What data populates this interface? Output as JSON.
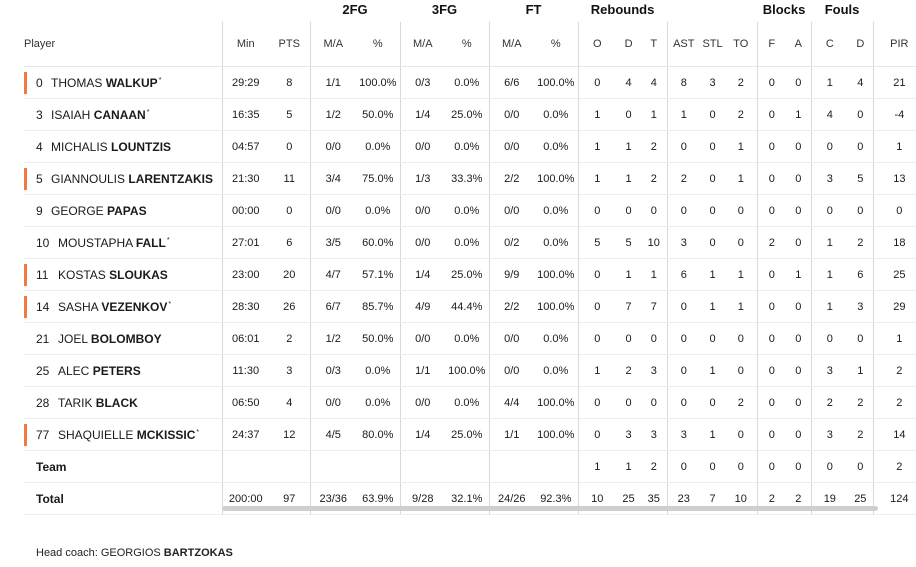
{
  "groups": {
    "fg2": "2FG",
    "fg3": "3FG",
    "ft": "FT",
    "reb": "Rebounds",
    "blk": "Blocks",
    "fouls": "Fouls"
  },
  "headers": {
    "player": "Player",
    "min": "Min",
    "pts": "PTS",
    "fg2_ma": "M/A",
    "fg2_pct": "%",
    "fg3_ma": "M/A",
    "fg3_pct": "%",
    "ft_ma": "M/A",
    "ft_pct": "%",
    "reb_o": "O",
    "reb_d": "D",
    "reb_t": "T",
    "ast": "AST",
    "stl": "STL",
    "to": "TO",
    "blk_f": "F",
    "blk_a": "A",
    "foul_c": "C",
    "foul_d": "D",
    "pir": "PIR"
  },
  "players": [
    {
      "num": "0",
      "first": "THOMAS",
      "last": "WALKUP",
      "star": "*",
      "starter": true,
      "min": "29:29",
      "pts": "8",
      "fg2": "1/1",
      "fg2p": "100.0%",
      "fg3": "0/3",
      "fg3p": "0.0%",
      "ft": "6/6",
      "ftp": "100.0%",
      "o": "0",
      "d": "4",
      "t": "4",
      "ast": "8",
      "stl": "3",
      "to": "2",
      "bf": "0",
      "ba": "0",
      "fc": "1",
      "fd": "4",
      "pir": "21"
    },
    {
      "num": "3",
      "first": "ISAIAH",
      "last": "CANAAN",
      "star": "*",
      "starter": false,
      "min": "16:35",
      "pts": "5",
      "fg2": "1/2",
      "fg2p": "50.0%",
      "fg3": "1/4",
      "fg3p": "25.0%",
      "ft": "0/0",
      "ftp": "0.0%",
      "o": "1",
      "d": "0",
      "t": "1",
      "ast": "1",
      "stl": "0",
      "to": "2",
      "bf": "0",
      "ba": "1",
      "fc": "4",
      "fd": "0",
      "pir": "-4"
    },
    {
      "num": "4",
      "first": "MICHALIS",
      "last": "LOUNTZIS",
      "star": "",
      "starter": false,
      "min": "04:57",
      "pts": "0",
      "fg2": "0/0",
      "fg2p": "0.0%",
      "fg3": "0/0",
      "fg3p": "0.0%",
      "ft": "0/0",
      "ftp": "0.0%",
      "o": "1",
      "d": "1",
      "t": "2",
      "ast": "0",
      "stl": "0",
      "to": "1",
      "bf": "0",
      "ba": "0",
      "fc": "0",
      "fd": "0",
      "pir": "1"
    },
    {
      "num": "5",
      "first": "GIANNOULIS",
      "last": "LARENTZAKIS",
      "star": "",
      "starter": true,
      "min": "21:30",
      "pts": "11",
      "fg2": "3/4",
      "fg2p": "75.0%",
      "fg3": "1/3",
      "fg3p": "33.3%",
      "ft": "2/2",
      "ftp": "100.0%",
      "o": "1",
      "d": "1",
      "t": "2",
      "ast": "2",
      "stl": "0",
      "to": "1",
      "bf": "0",
      "ba": "0",
      "fc": "3",
      "fd": "5",
      "pir": "13"
    },
    {
      "num": "9",
      "first": "GEORGE",
      "last": "PAPAS",
      "star": "",
      "starter": false,
      "min": "00:00",
      "pts": "0",
      "fg2": "0/0",
      "fg2p": "0.0%",
      "fg3": "0/0",
      "fg3p": "0.0%",
      "ft": "0/0",
      "ftp": "0.0%",
      "o": "0",
      "d": "0",
      "t": "0",
      "ast": "0",
      "stl": "0",
      "to": "0",
      "bf": "0",
      "ba": "0",
      "fc": "0",
      "fd": "0",
      "pir": "0"
    },
    {
      "num": "10",
      "first": "MOUSTAPHA",
      "last": "FALL",
      "star": "*",
      "starter": false,
      "min": "27:01",
      "pts": "6",
      "fg2": "3/5",
      "fg2p": "60.0%",
      "fg3": "0/0",
      "fg3p": "0.0%",
      "ft": "0/2",
      "ftp": "0.0%",
      "o": "5",
      "d": "5",
      "t": "10",
      "ast": "3",
      "stl": "0",
      "to": "0",
      "bf": "2",
      "ba": "0",
      "fc": "1",
      "fd": "2",
      "pir": "18"
    },
    {
      "num": "11",
      "first": "KOSTAS",
      "last": "SLOUKAS",
      "star": "",
      "starter": true,
      "min": "23:00",
      "pts": "20",
      "fg2": "4/7",
      "fg2p": "57.1%",
      "fg3": "1/4",
      "fg3p": "25.0%",
      "ft": "9/9",
      "ftp": "100.0%",
      "o": "0",
      "d": "1",
      "t": "1",
      "ast": "6",
      "stl": "1",
      "to": "1",
      "bf": "0",
      "ba": "1",
      "fc": "1",
      "fd": "6",
      "pir": "25"
    },
    {
      "num": "14",
      "first": "SASHA",
      "last": "VEZENKOV",
      "star": "*",
      "starter": true,
      "min": "28:30",
      "pts": "26",
      "fg2": "6/7",
      "fg2p": "85.7%",
      "fg3": "4/9",
      "fg3p": "44.4%",
      "ft": "2/2",
      "ftp": "100.0%",
      "o": "0",
      "d": "7",
      "t": "7",
      "ast": "0",
      "stl": "1",
      "to": "1",
      "bf": "0",
      "ba": "0",
      "fc": "1",
      "fd": "3",
      "pir": "29"
    },
    {
      "num": "21",
      "first": "JOEL",
      "last": "BOLOMBOY",
      "star": "",
      "starter": false,
      "min": "06:01",
      "pts": "2",
      "fg2": "1/2",
      "fg2p": "50.0%",
      "fg3": "0/0",
      "fg3p": "0.0%",
      "ft": "0/0",
      "ftp": "0.0%",
      "o": "0",
      "d": "0",
      "t": "0",
      "ast": "0",
      "stl": "0",
      "to": "0",
      "bf": "0",
      "ba": "0",
      "fc": "0",
      "fd": "0",
      "pir": "1"
    },
    {
      "num": "25",
      "first": "ALEC",
      "last": "PETERS",
      "star": "",
      "starter": false,
      "min": "11:30",
      "pts": "3",
      "fg2": "0/3",
      "fg2p": "0.0%",
      "fg3": "1/1",
      "fg3p": "100.0%",
      "ft": "0/0",
      "ftp": "0.0%",
      "o": "1",
      "d": "2",
      "t": "3",
      "ast": "0",
      "stl": "1",
      "to": "0",
      "bf": "0",
      "ba": "0",
      "fc": "3",
      "fd": "1",
      "pir": "2"
    },
    {
      "num": "28",
      "first": "TARIK",
      "last": "BLACK",
      "star": "",
      "starter": false,
      "min": "06:50",
      "pts": "4",
      "fg2": "0/0",
      "fg2p": "0.0%",
      "fg3": "0/0",
      "fg3p": "0.0%",
      "ft": "4/4",
      "ftp": "100.0%",
      "o": "0",
      "d": "0",
      "t": "0",
      "ast": "0",
      "stl": "0",
      "to": "2",
      "bf": "0",
      "ba": "0",
      "fc": "2",
      "fd": "2",
      "pir": "2"
    },
    {
      "num": "77",
      "first": "SHAQUIELLE",
      "last": "MCKISSIC",
      "star": "*",
      "starter": true,
      "min": "24:37",
      "pts": "12",
      "fg2": "4/5",
      "fg2p": "80.0%",
      "fg3": "1/4",
      "fg3p": "25.0%",
      "ft": "1/1",
      "ftp": "100.0%",
      "o": "0",
      "d": "3",
      "t": "3",
      "ast": "3",
      "stl": "1",
      "to": "0",
      "bf": "0",
      "ba": "0",
      "fc": "3",
      "fd": "2",
      "pir": "14"
    }
  ],
  "team": {
    "label": "Team",
    "o": "1",
    "d": "1",
    "t": "2",
    "ast": "0",
    "stl": "0",
    "to": "0",
    "bf": "0",
    "ba": "0",
    "fc": "0",
    "fd": "0",
    "pir": "2"
  },
  "total": {
    "label": "Total",
    "min": "200:00",
    "pts": "97",
    "fg2": "23/36",
    "fg2p": "63.9%",
    "fg3": "9/28",
    "fg3p": "32.1%",
    "ft": "24/26",
    "ftp": "92.3%",
    "o": "10",
    "d": "25",
    "t": "35",
    "ast": "23",
    "stl": "7",
    "to": "10",
    "bf": "2",
    "ba": "2",
    "fc": "19",
    "fd": "25",
    "pir": "124"
  },
  "coach": {
    "label": "Head coach:",
    "first": "GEORGIOS",
    "last": "BARTZOKAS"
  },
  "colors": {
    "starter_marker": "#f27a3d"
  }
}
